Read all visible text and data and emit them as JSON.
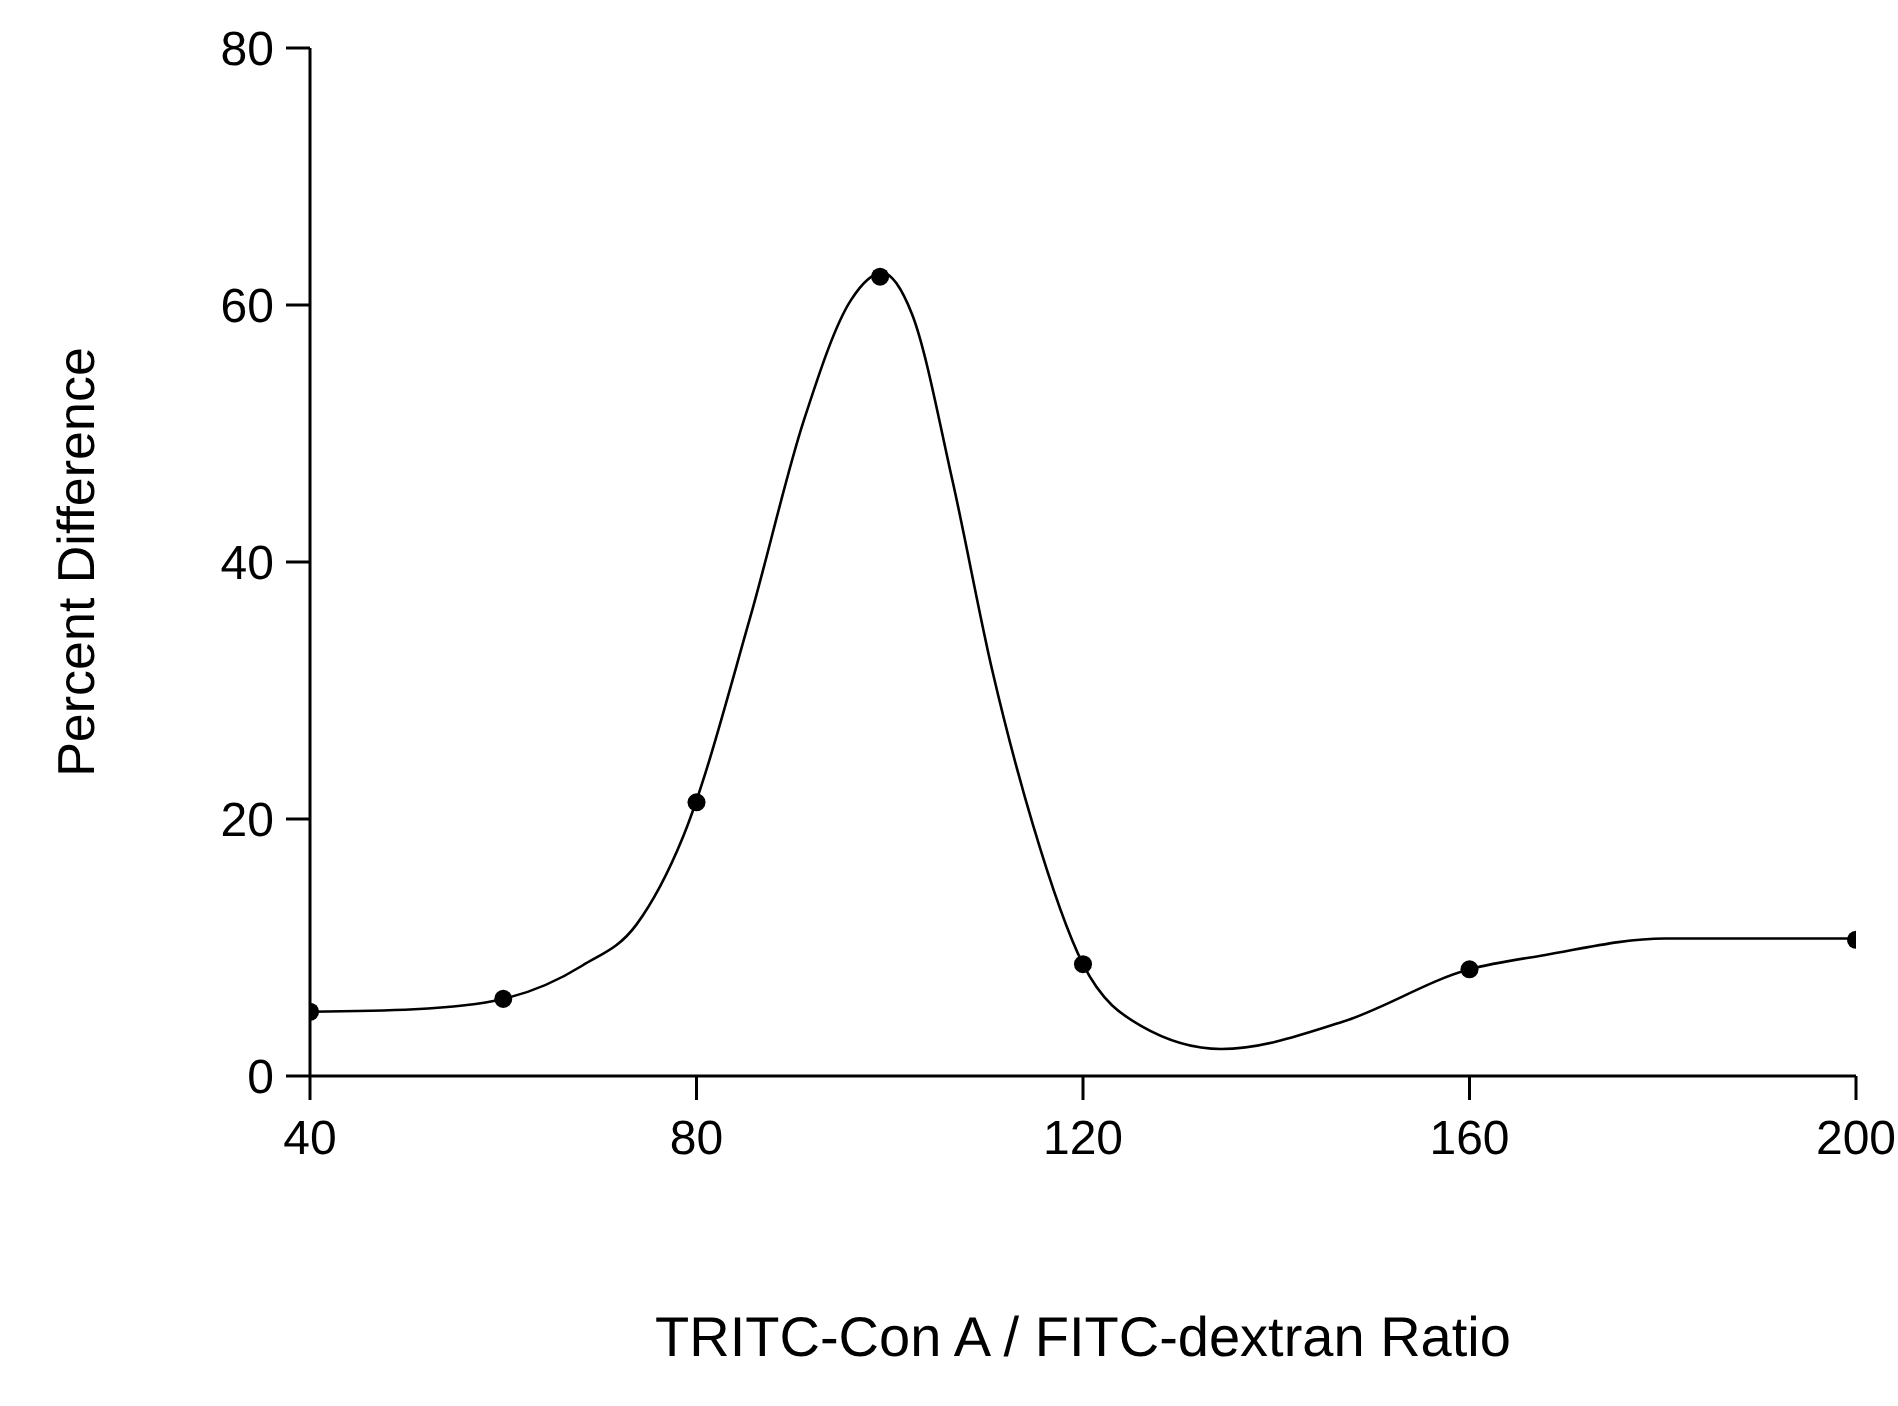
{
  "chart_data": {
    "type": "scatter",
    "xlabel": "TRITC-Con A / FITC-dextran Ratio",
    "ylabel": "Percent Difference",
    "xlim": [
      40,
      200
    ],
    "xticks": [
      40,
      80,
      120,
      160,
      200
    ],
    "ylim": [
      0,
      80
    ],
    "yticks": [
      0,
      20,
      40,
      60,
      80
    ],
    "grid": false,
    "series": [
      {
        "type": "scatter",
        "color": "#000000",
        "marker": "circle",
        "x": [
          40,
          60,
          80,
          99,
          120,
          160,
          200
        ],
        "values": [
          5.0,
          6.0,
          21.3,
          62.2,
          8.7,
          8.3,
          10.6
        ]
      },
      {
        "type": "line",
        "color": "#000000",
        "marker": "none",
        "line_style": "solid",
        "x": [
          40,
          50.8,
          60,
          68.2,
          73.8,
          78.6,
          85.6,
          91.1,
          96,
          99.2,
          102.3,
          106.5,
          110.6,
          114.8,
          120,
          126,
          134.3,
          146.8,
          160,
          167.7,
          180.2,
          200
        ],
        "values": [
          5.0,
          5.2,
          6.0,
          8.6,
          11.8,
          18.6,
          35.8,
          51,
          60.4,
          62.5,
          59.3,
          46.3,
          31.6,
          19.6,
          8.7,
          3.9,
          2.1,
          4.2,
          8.3,
          9.4,
          10.7,
          10.7
        ]
      }
    ]
  }
}
